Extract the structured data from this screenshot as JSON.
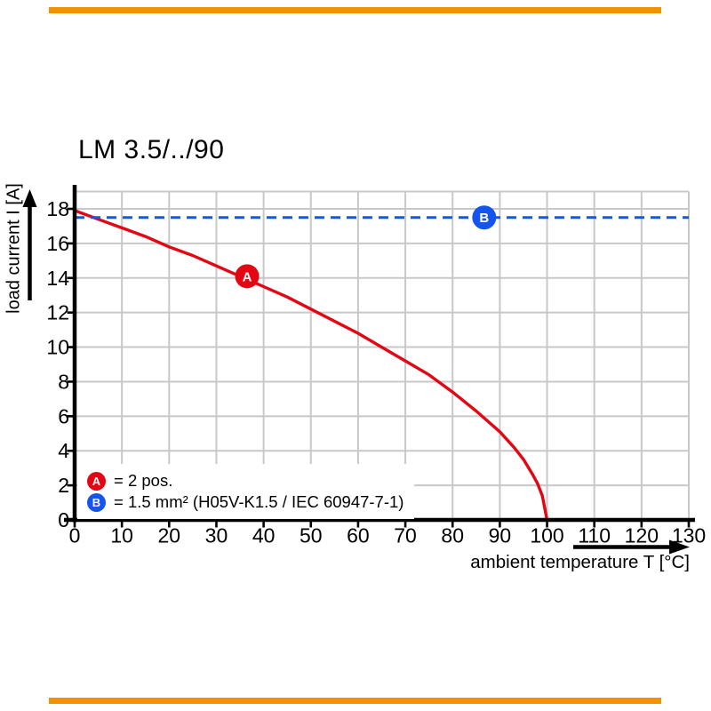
{
  "colors": {
    "accent_orange": "#f39200",
    "curve_red": "#e30613",
    "line_blue": "#1554ee",
    "grid_gray": "#c8c8c8",
    "axis_black": "#000000"
  },
  "chart_data": {
    "type": "line",
    "title": "LM 3.5/../90",
    "xlabel": "ambient temperature T [°C]",
    "ylabel": "load current I [A]",
    "xlim": [
      0,
      130
    ],
    "ylim": [
      0,
      19
    ],
    "grid": true,
    "legend_position": "bottom-left-inside",
    "x_ticks": [
      0,
      10,
      20,
      30,
      40,
      50,
      60,
      70,
      80,
      90,
      100,
      110,
      120,
      130
    ],
    "y_ticks": [
      0,
      2,
      4,
      6,
      8,
      10,
      12,
      14,
      16,
      18
    ],
    "series": [
      {
        "name": "A",
        "label": "= 2 pos.",
        "color": "#e30613",
        "style": "solid",
        "marker": {
          "x": 36.5,
          "y": 14.1
        },
        "points": [
          [
            0,
            17.9
          ],
          [
            5,
            17.4
          ],
          [
            10,
            16.9
          ],
          [
            15,
            16.4
          ],
          [
            20,
            15.8
          ],
          [
            25,
            15.3
          ],
          [
            30,
            14.7
          ],
          [
            35,
            14.1
          ],
          [
            40,
            13.5
          ],
          [
            45,
            12.9
          ],
          [
            50,
            12.2
          ],
          [
            55,
            11.5
          ],
          [
            60,
            10.8
          ],
          [
            65,
            10.0
          ],
          [
            70,
            9.2
          ],
          [
            75,
            8.4
          ],
          [
            80,
            7.4
          ],
          [
            85,
            6.3
          ],
          [
            90,
            5.1
          ],
          [
            93,
            4.2
          ],
          [
            95,
            3.5
          ],
          [
            97,
            2.6
          ],
          [
            98,
            2.1
          ],
          [
            99,
            1.4
          ],
          [
            100,
            0
          ]
        ]
      },
      {
        "name": "B",
        "label": "= 1.5 mm² (H05V-K1.5 / IEC 60947-7-1)",
        "color": "#1554ee",
        "style": "dashed",
        "marker": {
          "x": 86.7,
          "y": 17.5
        },
        "points": [
          [
            0,
            17.5
          ],
          [
            130,
            17.5
          ]
        ]
      }
    ]
  }
}
